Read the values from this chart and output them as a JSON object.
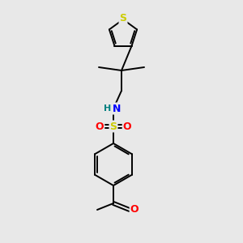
{
  "background_color": "#e8e8e8",
  "atom_colors": {
    "S_thiophene": "#cccc00",
    "S_sulfonyl": "#cccc00",
    "N": "#0000ff",
    "O": "#ff0000",
    "H": "#008080",
    "C": "#000000"
  },
  "bond_color": "#000000",
  "figsize": [
    3.0,
    3.0
  ],
  "dpi": 100,
  "lw": 1.4
}
